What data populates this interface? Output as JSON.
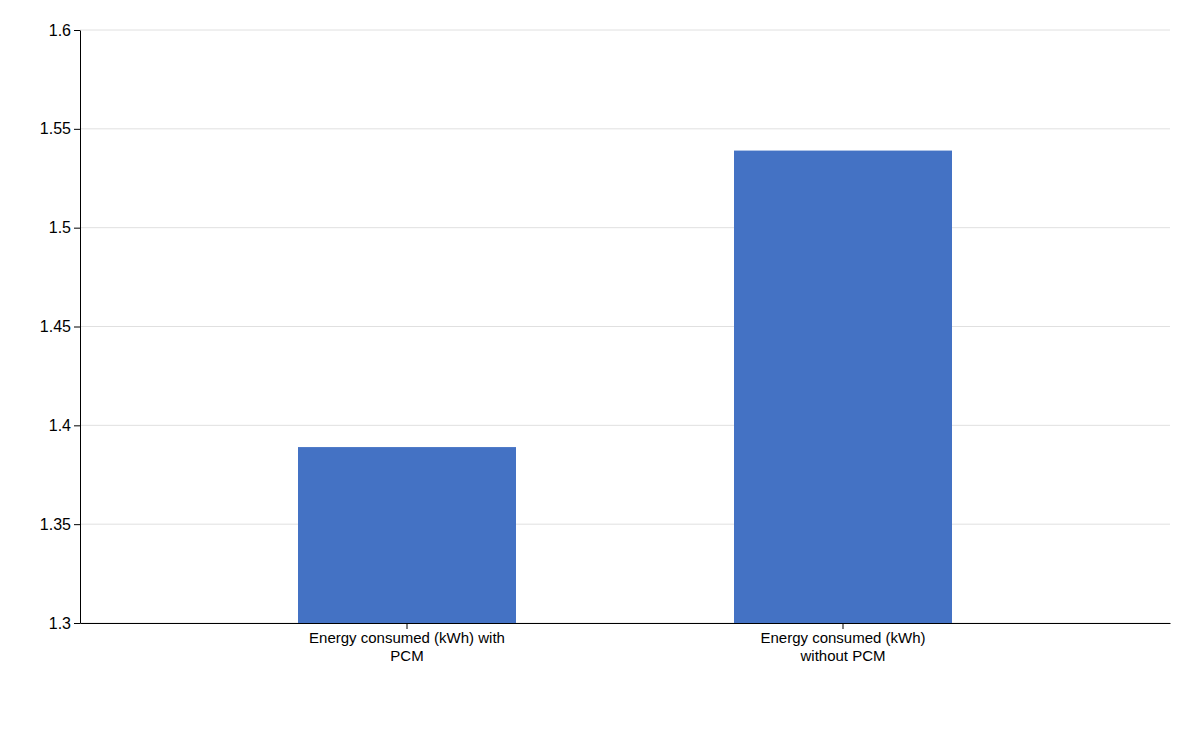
{
  "chart_data": {
    "type": "bar",
    "categories": [
      "Energy consumed (kWh) with\nPCM",
      "Energy consumed (kWh)\nwithout PCM"
    ],
    "values": [
      1.389,
      1.539
    ],
    "color": "#4472C4",
    "ylim": [
      1.3,
      1.6
    ],
    "yticks": [
      1.3,
      1.35,
      1.4,
      1.45,
      1.5,
      1.55,
      1.6
    ],
    "grid": true
  }
}
